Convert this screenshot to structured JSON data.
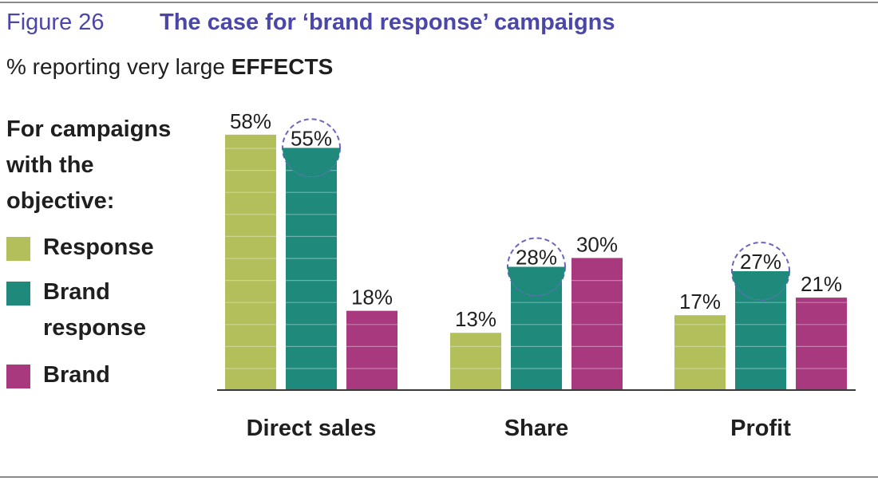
{
  "header": {
    "figure_label": "Figure 26",
    "title": "The case for ‘brand response’ campaigns",
    "subtitle_prefix": "% reporting very large",
    "subtitle_emphasis": "EFFECTS"
  },
  "legend": {
    "heading": "For campaigns with the objective:",
    "items": [
      {
        "label": "Response",
        "color": "#b3bf5a"
      },
      {
        "label": "Brand response",
        "color": "#1f8a7c"
      },
      {
        "label": "Brand",
        "color": "#a8397f"
      }
    ]
  },
  "chart_data": {
    "type": "bar",
    "categories": [
      "Direct sales",
      "Share",
      "Profit"
    ],
    "series": [
      {
        "name": "Response",
        "values": [
          58,
          13,
          17
        ],
        "labels": [
          "58%",
          "13%",
          "17%"
        ],
        "color": "#b3bf5a"
      },
      {
        "name": "Brand response",
        "values": [
          55,
          28,
          27
        ],
        "labels": [
          "55%",
          "28%",
          "27%"
        ],
        "color": "#1f8a7c",
        "highlighted": true
      },
      {
        "name": "Brand",
        "values": [
          18,
          30,
          21
        ],
        "labels": [
          "18%",
          "30%",
          "21%"
        ],
        "color": "#a8397f"
      }
    ],
    "title": "The case for ‘brand response’ campaigns",
    "subtitle": "% reporting very large EFFECTS",
    "ylim": [
      0,
      60
    ],
    "grid": false,
    "legend_placement": "left"
  }
}
